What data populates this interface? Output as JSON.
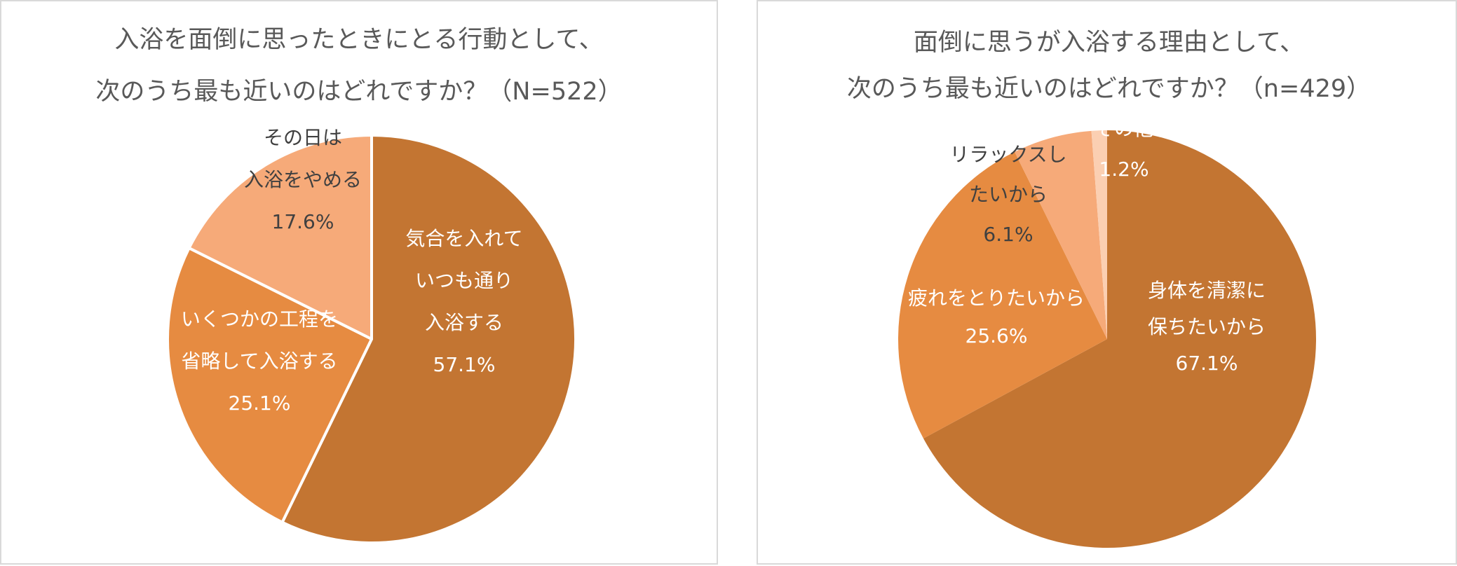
{
  "chart_data": [
    {
      "type": "pie",
      "title_lines": [
        "入浴を面倒に思ったときにとる行動として、",
        "次のうち最も近いのはどれですか？（N=522）"
      ],
      "slices": [
        {
          "label_lines": [
            "気合を入れて",
            "いつも通り",
            "入浴する"
          ],
          "value_label": "57.1%",
          "value": 57.1,
          "color": "#c37532"
        },
        {
          "label_lines": [
            "いくつかの工程を",
            "省略して入浴する"
          ],
          "value_label": "25.1%",
          "value": 25.1,
          "color": "#e68b41"
        },
        {
          "label_lines": [
            "その日は",
            "入浴をやめる"
          ],
          "value_label": "17.6%",
          "value": 17.6,
          "color": "#f6aa79"
        }
      ],
      "legend": "none"
    },
    {
      "type": "pie",
      "title_lines": [
        "面倒に思うが入浴する理由として、",
        "次のうち最も近いのはどれですか？（n=429）"
      ],
      "slices": [
        {
          "label_lines": [
            "身体を清潔に",
            "保ちたいから"
          ],
          "value_label": "67.1%",
          "value": 67.1,
          "color": "#c37532"
        },
        {
          "label_lines": [
            "疲れをとりたいから"
          ],
          "value_label": "25.6%",
          "value": 25.6,
          "color": "#e68b41"
        },
        {
          "label_lines": [
            "リラックスし",
            "たいから"
          ],
          "value_label": "6.1%",
          "value": 6.1,
          "color": "#f6aa79"
        },
        {
          "label_lines": [
            "その他"
          ],
          "value_label": "1.2%",
          "value": 1.2,
          "color": "#fbcfb2"
        }
      ],
      "legend": "none"
    }
  ]
}
